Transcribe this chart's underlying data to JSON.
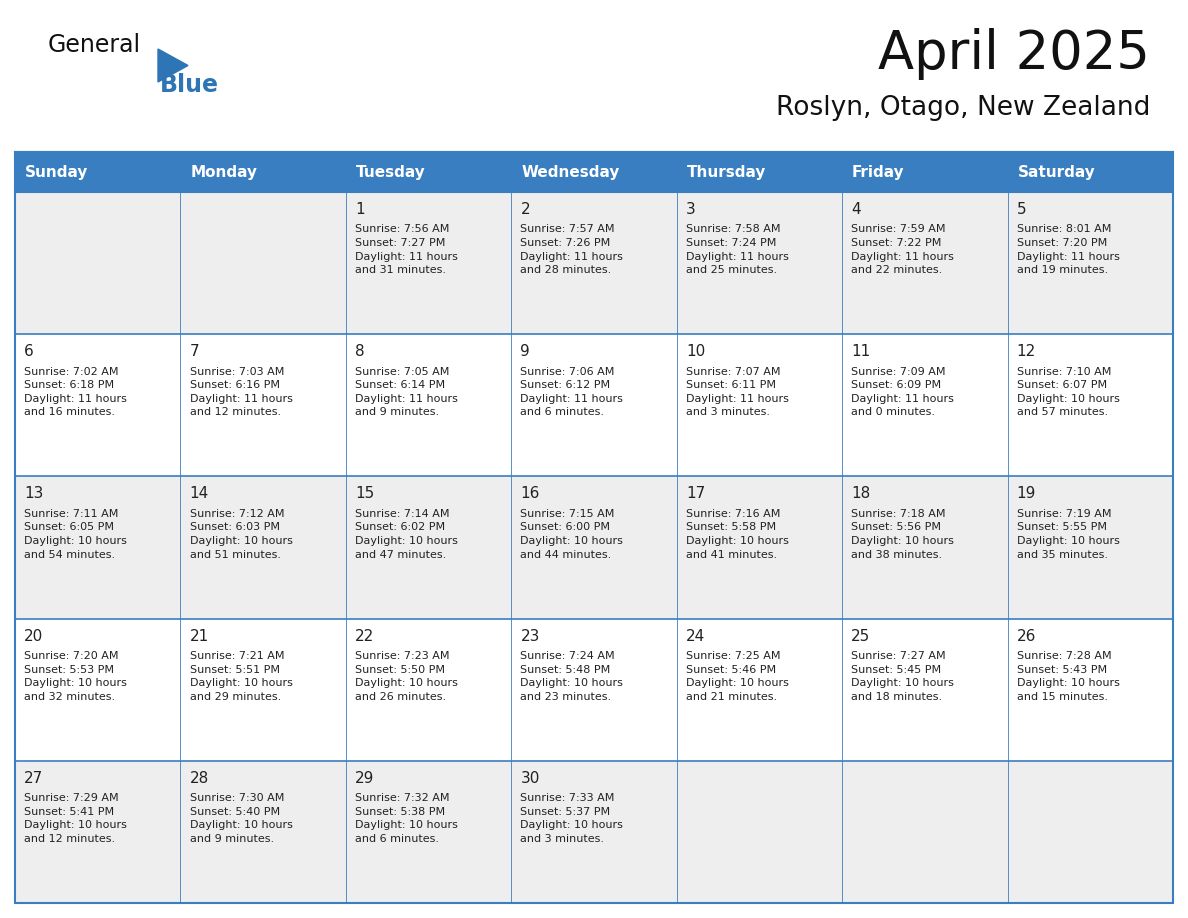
{
  "title": "April 2025",
  "subtitle": "Roslyn, Otago, New Zealand",
  "days_of_week": [
    "Sunday",
    "Monday",
    "Tuesday",
    "Wednesday",
    "Thursday",
    "Friday",
    "Saturday"
  ],
  "header_bg": "#3a7ec2",
  "header_text": "#FFFFFF",
  "row_bg_light": "#eeeeee",
  "row_bg_white": "#FFFFFF",
  "border_color": "#3a7ec2",
  "day_num_color": "#222222",
  "text_color": "#222222",
  "title_color": "#111111",
  "subtitle_color": "#111111",
  "logo_general_color": "#111111",
  "logo_blue_color": "#2E75B6",
  "logo_triangle_color": "#2E75B6",
  "weeks": [
    [
      {
        "day": null,
        "info": null
      },
      {
        "day": null,
        "info": null
      },
      {
        "day": 1,
        "info": "Sunrise: 7:56 AM\nSunset: 7:27 PM\nDaylight: 11 hours\nand 31 minutes."
      },
      {
        "day": 2,
        "info": "Sunrise: 7:57 AM\nSunset: 7:26 PM\nDaylight: 11 hours\nand 28 minutes."
      },
      {
        "day": 3,
        "info": "Sunrise: 7:58 AM\nSunset: 7:24 PM\nDaylight: 11 hours\nand 25 minutes."
      },
      {
        "day": 4,
        "info": "Sunrise: 7:59 AM\nSunset: 7:22 PM\nDaylight: 11 hours\nand 22 minutes."
      },
      {
        "day": 5,
        "info": "Sunrise: 8:01 AM\nSunset: 7:20 PM\nDaylight: 11 hours\nand 19 minutes."
      }
    ],
    [
      {
        "day": 6,
        "info": "Sunrise: 7:02 AM\nSunset: 6:18 PM\nDaylight: 11 hours\nand 16 minutes."
      },
      {
        "day": 7,
        "info": "Sunrise: 7:03 AM\nSunset: 6:16 PM\nDaylight: 11 hours\nand 12 minutes."
      },
      {
        "day": 8,
        "info": "Sunrise: 7:05 AM\nSunset: 6:14 PM\nDaylight: 11 hours\nand 9 minutes."
      },
      {
        "day": 9,
        "info": "Sunrise: 7:06 AM\nSunset: 6:12 PM\nDaylight: 11 hours\nand 6 minutes."
      },
      {
        "day": 10,
        "info": "Sunrise: 7:07 AM\nSunset: 6:11 PM\nDaylight: 11 hours\nand 3 minutes."
      },
      {
        "day": 11,
        "info": "Sunrise: 7:09 AM\nSunset: 6:09 PM\nDaylight: 11 hours\nand 0 minutes."
      },
      {
        "day": 12,
        "info": "Sunrise: 7:10 AM\nSunset: 6:07 PM\nDaylight: 10 hours\nand 57 minutes."
      }
    ],
    [
      {
        "day": 13,
        "info": "Sunrise: 7:11 AM\nSunset: 6:05 PM\nDaylight: 10 hours\nand 54 minutes."
      },
      {
        "day": 14,
        "info": "Sunrise: 7:12 AM\nSunset: 6:03 PM\nDaylight: 10 hours\nand 51 minutes."
      },
      {
        "day": 15,
        "info": "Sunrise: 7:14 AM\nSunset: 6:02 PM\nDaylight: 10 hours\nand 47 minutes."
      },
      {
        "day": 16,
        "info": "Sunrise: 7:15 AM\nSunset: 6:00 PM\nDaylight: 10 hours\nand 44 minutes."
      },
      {
        "day": 17,
        "info": "Sunrise: 7:16 AM\nSunset: 5:58 PM\nDaylight: 10 hours\nand 41 minutes."
      },
      {
        "day": 18,
        "info": "Sunrise: 7:18 AM\nSunset: 5:56 PM\nDaylight: 10 hours\nand 38 minutes."
      },
      {
        "day": 19,
        "info": "Sunrise: 7:19 AM\nSunset: 5:55 PM\nDaylight: 10 hours\nand 35 minutes."
      }
    ],
    [
      {
        "day": 20,
        "info": "Sunrise: 7:20 AM\nSunset: 5:53 PM\nDaylight: 10 hours\nand 32 minutes."
      },
      {
        "day": 21,
        "info": "Sunrise: 7:21 AM\nSunset: 5:51 PM\nDaylight: 10 hours\nand 29 minutes."
      },
      {
        "day": 22,
        "info": "Sunrise: 7:23 AM\nSunset: 5:50 PM\nDaylight: 10 hours\nand 26 minutes."
      },
      {
        "day": 23,
        "info": "Sunrise: 7:24 AM\nSunset: 5:48 PM\nDaylight: 10 hours\nand 23 minutes."
      },
      {
        "day": 24,
        "info": "Sunrise: 7:25 AM\nSunset: 5:46 PM\nDaylight: 10 hours\nand 21 minutes."
      },
      {
        "day": 25,
        "info": "Sunrise: 7:27 AM\nSunset: 5:45 PM\nDaylight: 10 hours\nand 18 minutes."
      },
      {
        "day": 26,
        "info": "Sunrise: 7:28 AM\nSunset: 5:43 PM\nDaylight: 10 hours\nand 15 minutes."
      }
    ],
    [
      {
        "day": 27,
        "info": "Sunrise: 7:29 AM\nSunset: 5:41 PM\nDaylight: 10 hours\nand 12 minutes."
      },
      {
        "day": 28,
        "info": "Sunrise: 7:30 AM\nSunset: 5:40 PM\nDaylight: 10 hours\nand 9 minutes."
      },
      {
        "day": 29,
        "info": "Sunrise: 7:32 AM\nSunset: 5:38 PM\nDaylight: 10 hours\nand 6 minutes."
      },
      {
        "day": 30,
        "info": "Sunrise: 7:33 AM\nSunset: 5:37 PM\nDaylight: 10 hours\nand 3 minutes."
      },
      {
        "day": null,
        "info": null
      },
      {
        "day": null,
        "info": null
      },
      {
        "day": null,
        "info": null
      }
    ]
  ]
}
